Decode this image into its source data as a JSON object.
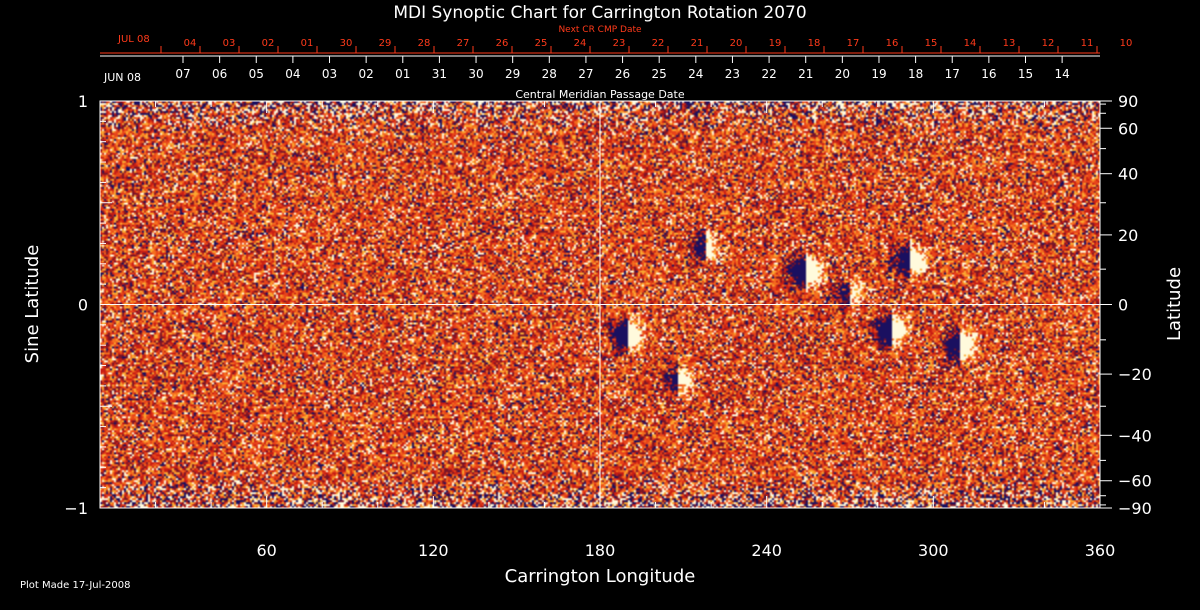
{
  "chart_data": {
    "type": "heatmap",
    "title": "MDI Synoptic Chart for Carrington Rotation 2070",
    "xlabel": "Carrington Longitude",
    "ylabel_left": "Sine Latitude",
    "ylabel_right": "Latitude",
    "xlim": [
      0,
      360
    ],
    "ylim": [
      -1,
      1
    ],
    "x_ticks": [
      60,
      120,
      180,
      240,
      300,
      360
    ],
    "y_ticks_left": [
      "1",
      "0",
      "−1"
    ],
    "y_ticks_right": [
      90,
      60,
      40,
      20,
      0,
      -20,
      -40,
      -60,
      -90
    ],
    "y_tick_labels_right": [
      "90",
      "60",
      "40",
      "20",
      "0",
      "−20",
      "−40",
      "−60",
      "−90"
    ],
    "grid_lines": {
      "x": 180,
      "y": 0
    },
    "cmp_axis": {
      "label": "Central Meridian Passage Date",
      "month_label": "JUN 08",
      "dates": [
        "07",
        "06",
        "05",
        "04",
        "03",
        "02",
        "01",
        "31",
        "30",
        "29",
        "28",
        "27",
        "26",
        "25",
        "24",
        "23",
        "22",
        "21",
        "20",
        "19",
        "18",
        "17",
        "16",
        "15",
        "14"
      ]
    },
    "next_cr_axis": {
      "label": "Next CR CMP Date",
      "month_label": "JUL 08",
      "dates": [
        "04",
        "03",
        "02",
        "01",
        "30",
        "29",
        "28",
        "27",
        "26",
        "25",
        "24",
        "23",
        "22",
        "21",
        "20",
        "19",
        "18",
        "17",
        "16",
        "15",
        "14",
        "13",
        "12",
        "11",
        "10"
      ]
    },
    "colors": {
      "background_field": "#e8441a",
      "positive": "#ffffe0",
      "negative": "#1a1060",
      "next_cr_text": "#ff3a1a"
    },
    "active_regions": [
      {
        "lon": 254,
        "sinlat": 0.16,
        "strength": 1.0
      },
      {
        "lon": 292,
        "sinlat": 0.22,
        "strength": 0.8
      },
      {
        "lon": 190,
        "sinlat": -0.15,
        "strength": 0.9
      },
      {
        "lon": 285,
        "sinlat": -0.13,
        "strength": 1.0
      },
      {
        "lon": 310,
        "sinlat": -0.2,
        "strength": 0.8
      },
      {
        "lon": 218,
        "sinlat": 0.28,
        "strength": 0.5
      },
      {
        "lon": 270,
        "sinlat": 0.05,
        "strength": 0.4
      },
      {
        "lon": 208,
        "sinlat": -0.38,
        "strength": 0.5
      }
    ]
  },
  "footer": {
    "plot_made": "Plot Made 17-Jul-2008"
  }
}
